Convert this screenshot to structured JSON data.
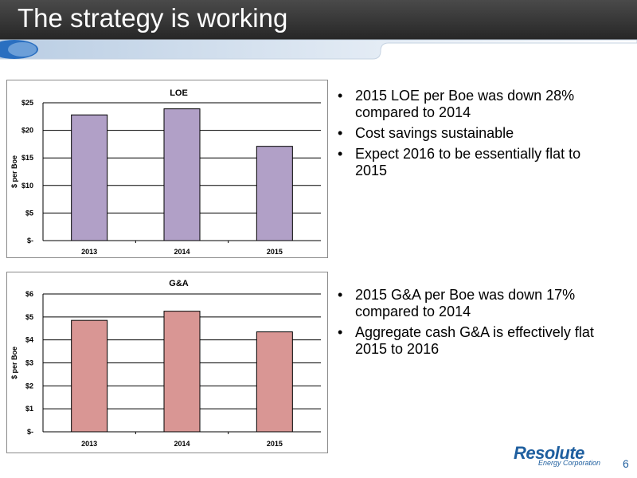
{
  "slide": {
    "title": "The strategy is working",
    "page_number": "6"
  },
  "logo": {
    "name": "Resolute",
    "subtitle": "Energy Corporation"
  },
  "bullets_top": [
    "2015 LOE per Boe was down 28% compared to 2014",
    "Cost savings sustainable",
    "Expect 2016 to be essentially flat to 2015"
  ],
  "bullets_bottom": [
    "2015 G&A per Boe was down 17% compared to 2014",
    "Aggregate cash G&A is effectively flat 2015 to 2016"
  ],
  "chart_data": [
    {
      "type": "bar",
      "title": "LOE",
      "ylabel": "$ per Boe",
      "xlabel": "",
      "categories": [
        "2013",
        "2014",
        "2015"
      ],
      "values": [
        22.8,
        23.9,
        17.1
      ],
      "ylim": [
        0,
        25
      ],
      "y_ticks": [
        0,
        5,
        10,
        15,
        20,
        25
      ],
      "y_tick_labels": [
        "$-",
        "$5",
        "$10",
        "$15",
        "$20",
        "$25"
      ],
      "grid": true,
      "bar_color": "#b1a0c7"
    },
    {
      "type": "bar",
      "title": "G&A",
      "ylabel": "$ per Boe",
      "xlabel": "",
      "categories": [
        "2013",
        "2014",
        "2015"
      ],
      "values": [
        4.85,
        5.25,
        4.35
      ],
      "ylim": [
        0,
        6
      ],
      "y_ticks": [
        0,
        1,
        2,
        3,
        4,
        5,
        6
      ],
      "y_tick_labels": [
        "$-",
        "$1",
        "$2",
        "$3",
        "$4",
        "$5",
        "$6"
      ],
      "grid": true,
      "bar_color": "#d99694"
    }
  ]
}
